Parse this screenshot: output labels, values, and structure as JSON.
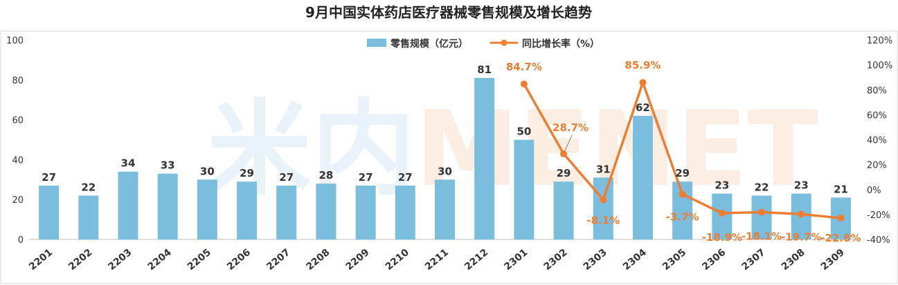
{
  "chart_data": {
    "type": "bar",
    "title": "9月中国实体药店医疗器械零售规模及增长趋势",
    "categories": [
      "2201",
      "2202",
      "2203",
      "2204",
      "2205",
      "2206",
      "2207",
      "2208",
      "2209",
      "2210",
      "2211",
      "2212",
      "2301",
      "2302",
      "2303",
      "2304",
      "2305",
      "2306",
      "2307",
      "2308",
      "2309"
    ],
    "series": [
      {
        "name": "零售规模（亿元）",
        "type": "bar",
        "axis": "left",
        "color": "#7ABDDC",
        "values": [
          27,
          22,
          34,
          33,
          30,
          29,
          27,
          28,
          27,
          27,
          30,
          81,
          50,
          29,
          31,
          62,
          29,
          23,
          22,
          23,
          21
        ],
        "labels": [
          "27",
          "22",
          "34",
          "33",
          "30",
          "29",
          "27",
          "28",
          "27",
          "27",
          "30",
          "81",
          "50",
          "29",
          "31",
          "62",
          "29",
          "23",
          "22",
          "23",
          "21"
        ]
      },
      {
        "name": "同比增长率（%）",
        "type": "line",
        "axis": "right",
        "color": "#ED7D31",
        "values": [
          null,
          null,
          null,
          null,
          null,
          null,
          null,
          null,
          null,
          null,
          null,
          null,
          84.7,
          28.7,
          -8.1,
          85.9,
          -3.7,
          -18.9,
          -18.1,
          -19.7,
          -22.8
        ],
        "labels": [
          "",
          "",
          "",
          "",
          "",
          "",
          "",
          "",
          "",
          "",
          "",
          "",
          "84.7%",
          "28.7%",
          "-8.1%",
          "85.9%",
          "-3.7%",
          "-18.9%",
          "-18.1%",
          "-19.7%",
          "-22.8%"
        ]
      }
    ],
    "y_left": {
      "min": 0,
      "max": 100,
      "ticks": [
        "0",
        "20",
        "40",
        "60",
        "80",
        "100"
      ]
    },
    "y_right": {
      "min": -40,
      "max": 120,
      "ticks": [
        "-40%",
        "-20%",
        "0%",
        "20%",
        "40%",
        "60%",
        "80%",
        "100%",
        "120%"
      ]
    },
    "legend_position": "top-center",
    "grid": false,
    "watermark": "米内MENET"
  }
}
